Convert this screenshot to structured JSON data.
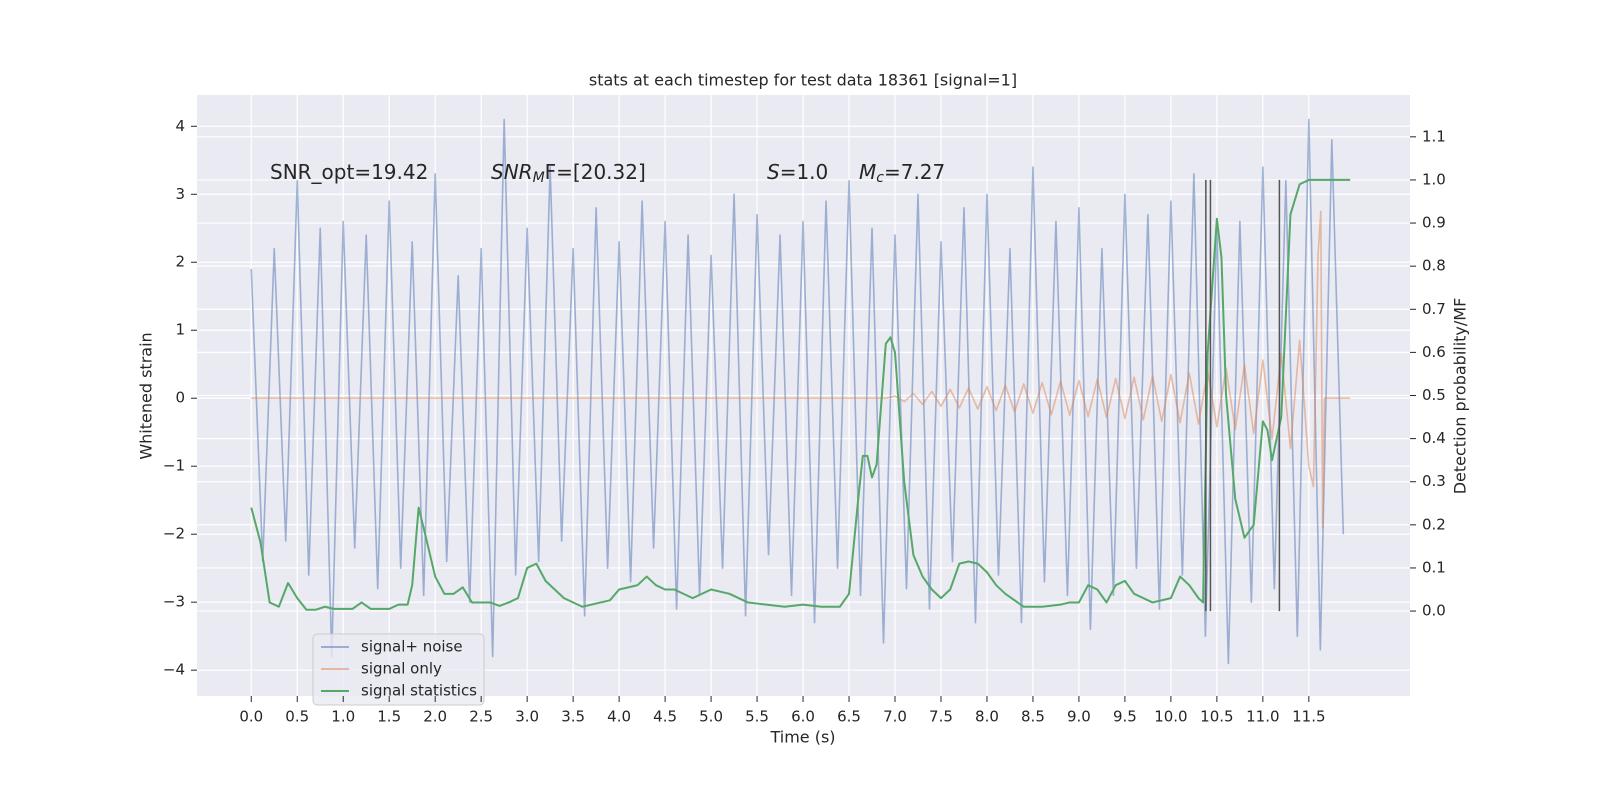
{
  "chart_data": {
    "type": "line",
    "title": "stats at each timestep for test data 18361 [signal=1]",
    "xlabel": "Time (s)",
    "ylabel": "Whitened strain",
    "y2label": "Detection probability/MF",
    "xlim": [
      -0.59,
      12.6
    ],
    "ylim": [
      -4.38,
      4.46
    ],
    "y2lim": [
      -0.197,
      1.197
    ],
    "xticks": [
      {
        "value": 0,
        "label": "0.0"
      },
      0.5,
      {
        "value": 1,
        "label": "1.0"
      },
      1.5,
      {
        "value": 2,
        "label": "2.0"
      },
      2.5,
      {
        "value": 3,
        "label": "3.0"
      },
      3.5,
      {
        "value": 4,
        "label": "4.0"
      },
      4.5,
      {
        "value": 5,
        "label": "5.0"
      },
      5.5,
      {
        "value": 6,
        "label": "6.0"
      },
      6.5,
      {
        "value": 7,
        "label": "7.0"
      },
      7.5,
      {
        "value": 8,
        "label": "8.0"
      },
      8.5,
      {
        "value": 9,
        "label": "9.0"
      },
      9.5,
      {
        "value": 10,
        "label": "10.0"
      },
      10.5,
      {
        "value": 11,
        "label": "11.0"
      },
      11.5
    ],
    "yticks": [
      {
        "value": -4,
        "label": "−4"
      },
      {
        "value": -3,
        "label": "−3"
      },
      {
        "value": -2,
        "label": "−2"
      },
      {
        "value": -1,
        "label": "−1"
      },
      0,
      1,
      2,
      3,
      4
    ],
    "y2ticks": [
      {
        "value": 0,
        "label": "0.0"
      },
      0.1,
      0.2,
      0.3,
      0.4,
      0.5,
      0.6,
      0.7,
      0.8,
      0.9,
      {
        "value": 1,
        "label": "1.0"
      },
      1.1
    ],
    "grid": true,
    "legend": "lower left",
    "annotations": [
      {
        "text": "SNR_opt=19.42"
      },
      {
        "italic": "SNR",
        "sub": "M",
        "text": "F=[20.32]"
      },
      {
        "italic": "S",
        "text": "=1.0"
      },
      {
        "italic": "M",
        "sub": "c",
        "text": "=7.27"
      }
    ],
    "vlines": {
      "x": [
        10.38,
        10.43,
        11.18
      ],
      "ymin": 0,
      "ymax": 1,
      "color": "#555555",
      "axis": "y2"
    },
    "series": [
      {
        "name": "signal+ noise",
        "color": "#4c72b0",
        "alpha": 0.5,
        "x": [
          0,
          0.125,
          0.25,
          0.375,
          0.5,
          0.625,
          0.75,
          0.875,
          1,
          1.125,
          1.25,
          1.375,
          1.5,
          1.625,
          1.75,
          1.875,
          2,
          2.125,
          2.25,
          2.375,
          2.5,
          2.625,
          2.75,
          2.875,
          3,
          3.125,
          3.25,
          3.375,
          3.5,
          3.625,
          3.75,
          3.875,
          4,
          4.125,
          4.25,
          4.375,
          4.5,
          4.625,
          4.75,
          4.875,
          5,
          5.125,
          5.25,
          5.375,
          5.5,
          5.625,
          5.75,
          5.875,
          6,
          6.125,
          6.25,
          6.375,
          6.5,
          6.625,
          6.75,
          6.875,
          7,
          7.125,
          7.25,
          7.375,
          7.5,
          7.625,
          7.75,
          7.875,
          8,
          8.125,
          8.25,
          8.375,
          8.5,
          8.625,
          8.75,
          8.875,
          9,
          9.125,
          9.25,
          9.375,
          9.5,
          9.625,
          9.75,
          9.875,
          10,
          10.125,
          10.25,
          10.375,
          10.5,
          10.625,
          10.75,
          10.875,
          11,
          11.125,
          11.25,
          11.375,
          11.5,
          11.625,
          11.75,
          11.875
        ],
        "values": [
          1.9,
          -2.4,
          2.2,
          -2.1,
          3.2,
          -2.6,
          2.5,
          -3.8,
          2.6,
          -2.2,
          2.4,
          -2.8,
          2.9,
          -2.5,
          2.3,
          -2.9,
          3.3,
          -2.4,
          1.8,
          -3.0,
          2.2,
          -3.8,
          4.1,
          -2.6,
          2.5,
          -2.4,
          3.4,
          -2.1,
          2.2,
          -3.2,
          2.8,
          -2.5,
          2.3,
          -2.7,
          2.9,
          -2.2,
          2.6,
          -3.1,
          2.4,
          -2.9,
          2.1,
          -2.5,
          3.0,
          -3.2,
          2.7,
          -2.3,
          2.4,
          -2.9,
          2.6,
          -3.3,
          2.9,
          -2.5,
          3.2,
          -2.9,
          2.5,
          -3.6,
          2.4,
          -2.8,
          3.0,
          -3.1,
          2.3,
          -2.4,
          2.8,
          -3.3,
          3.0,
          -2.6,
          2.2,
          -3.3,
          3.4,
          -2.7,
          2.6,
          -2.9,
          2.8,
          -3.4,
          2.2,
          -2.9,
          3.0,
          -2.5,
          2.7,
          -3.1,
          2.9,
          -2.6,
          3.3,
          -3.5,
          2.5,
          -3.9,
          2.6,
          -3.0,
          3.4,
          -2.8,
          3.2,
          -3.5,
          4.1,
          -3.7,
          3.8,
          -2.0
        ]
      },
      {
        "name": "signal only",
        "color": "#dd8452",
        "alpha": 0.5,
        "x": [
          0,
          6.9,
          7.0,
          7.1,
          7.2,
          7.3,
          7.4,
          7.5,
          7.6,
          7.7,
          7.8,
          7.9,
          8.0,
          8.1,
          8.2,
          8.3,
          8.4,
          8.5,
          8.6,
          8.7,
          8.8,
          8.9,
          9.0,
          9.1,
          9.2,
          9.3,
          9.4,
          9.5,
          9.6,
          9.7,
          9.8,
          9.9,
          10.0,
          10.1,
          10.2,
          10.3,
          10.4,
          10.5,
          10.6,
          10.7,
          10.8,
          10.9,
          11.0,
          11.1,
          11.2,
          11.3,
          11.4,
          11.5,
          11.55,
          11.6,
          11.63,
          11.65,
          11.67,
          11.95
        ],
        "values": [
          0,
          0,
          0.03,
          -0.05,
          0.07,
          -0.09,
          0.1,
          -0.12,
          0.13,
          -0.14,
          0.15,
          -0.16,
          0.17,
          -0.18,
          0.19,
          -0.2,
          0.21,
          -0.22,
          0.23,
          -0.24,
          0.25,
          -0.25,
          0.26,
          -0.27,
          0.28,
          -0.28,
          0.29,
          -0.3,
          0.31,
          -0.32,
          0.33,
          -0.34,
          0.35,
          -0.36,
          0.37,
          -0.38,
          0.4,
          -0.42,
          0.44,
          -0.46,
          0.49,
          -0.52,
          0.56,
          -0.6,
          0.66,
          -0.74,
          0.85,
          -1.0,
          -1.3,
          2.1,
          2.75,
          -1.9,
          0,
          0
        ]
      },
      {
        "name": "signal statistics",
        "color": "#55a868",
        "alpha": 1,
        "axis": "y2",
        "x": [
          0,
          0.1,
          0.2,
          0.3,
          0.4,
          0.5,
          0.6,
          0.7,
          0.8,
          0.9,
          1.0,
          1.1,
          1.2,
          1.3,
          1.4,
          1.5,
          1.6,
          1.7,
          1.75,
          1.82,
          1.9,
          2.0,
          2.1,
          2.2,
          2.3,
          2.4,
          2.5,
          2.6,
          2.7,
          2.8,
          2.9,
          3.0,
          3.1,
          3.2,
          3.4,
          3.6,
          3.8,
          3.9,
          4.0,
          4.2,
          4.3,
          4.4,
          4.5,
          4.6,
          4.8,
          5.0,
          5.2,
          5.4,
          5.6,
          5.8,
          6.0,
          6.2,
          6.4,
          6.5,
          6.6,
          6.65,
          6.7,
          6.75,
          6.8,
          6.9,
          6.95,
          7.0,
          7.1,
          7.2,
          7.3,
          7.4,
          7.5,
          7.6,
          7.7,
          7.8,
          7.9,
          8.0,
          8.1,
          8.2,
          8.4,
          8.6,
          8.8,
          8.9,
          9.0,
          9.1,
          9.2,
          9.3,
          9.4,
          9.5,
          9.6,
          9.8,
          10.0,
          10.1,
          10.2,
          10.3,
          10.35,
          10.4,
          10.5,
          10.55,
          10.6,
          10.7,
          10.8,
          10.9,
          11.0,
          11.05,
          11.1,
          11.2,
          11.3,
          11.4,
          11.5,
          11.95
        ],
        "values": [
          0.24,
          0.16,
          0.02,
          0.01,
          0.065,
          0.03,
          0.003,
          0.003,
          0.01,
          0.005,
          0.005,
          0.005,
          0.02,
          0.005,
          0.005,
          0.005,
          0.015,
          0.015,
          0.06,
          0.24,
          0.17,
          0.08,
          0.04,
          0.04,
          0.055,
          0.02,
          0.02,
          0.02,
          0.012,
          0.02,
          0.03,
          0.1,
          0.11,
          0.07,
          0.03,
          0.01,
          0.02,
          0.025,
          0.05,
          0.06,
          0.08,
          0.06,
          0.05,
          0.05,
          0.03,
          0.05,
          0.04,
          0.02,
          0.015,
          0.01,
          0.015,
          0.01,
          0.01,
          0.04,
          0.26,
          0.36,
          0.36,
          0.31,
          0.34,
          0.62,
          0.635,
          0.6,
          0.3,
          0.13,
          0.08,
          0.05,
          0.03,
          0.05,
          0.11,
          0.115,
          0.11,
          0.09,
          0.06,
          0.04,
          0.01,
          0.01,
          0.015,
          0.02,
          0.02,
          0.06,
          0.05,
          0.02,
          0.06,
          0.07,
          0.04,
          0.02,
          0.03,
          0.08,
          0.06,
          0.03,
          0.02,
          0.6,
          0.91,
          0.82,
          0.5,
          0.26,
          0.17,
          0.2,
          0.44,
          0.42,
          0.35,
          0.45,
          0.92,
          0.99,
          1.0,
          1.0
        ]
      }
    ]
  }
}
